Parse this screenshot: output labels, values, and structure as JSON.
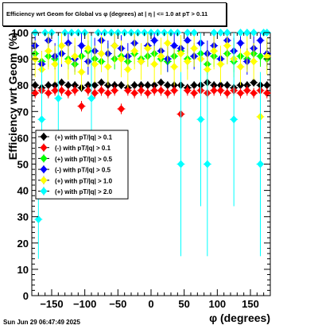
{
  "title": "Efficiency wrt Geom for Global vs φ (degrees) at |  η  | <= 1.0 at pT > 0.11",
  "footer": "Sun Jun 29 06:47:49 2025",
  "chart_data": {
    "type": "scatter",
    "title": "Efficiency wrt Geom for Global vs φ (degrees) at |  η  | <= 1.0 at pT > 0.11",
    "xlabel": "φ (degrees)",
    "ylabel": "Efficiency wrt Geom (%)",
    "xlim": [
      -180,
      180
    ],
    "ylim": [
      0,
      100
    ],
    "x_ticks": [
      -150,
      -100,
      -50,
      0,
      50,
      100,
      150
    ],
    "y_ticks": [
      0,
      10,
      20,
      30,
      40,
      50,
      60,
      70,
      80,
      90,
      100
    ],
    "grid": false,
    "legend_position": "middle-left",
    "series": [
      {
        "name": "(+) with pT/|q| > 0.1",
        "color": "#000000",
        "x": [
          -175,
          -165,
          -155,
          -145,
          -135,
          -125,
          -115,
          -105,
          -95,
          -85,
          -75,
          -65,
          -55,
          -45,
          -35,
          -25,
          -15,
          -5,
          5,
          15,
          25,
          35,
          45,
          55,
          65,
          75,
          85,
          95,
          105,
          115,
          125,
          135,
          145,
          155,
          165,
          175
        ],
        "y": [
          80,
          79,
          80,
          80,
          81,
          80,
          80,
          79,
          80,
          80,
          81,
          80,
          80,
          80,
          79,
          80,
          80,
          80,
          80,
          81,
          80,
          80,
          80,
          79,
          80,
          80,
          81,
          80,
          80,
          80,
          79,
          80,
          80,
          81,
          80,
          80
        ],
        "err": [
          1.5,
          1.5,
          1.5,
          1.5,
          1.5,
          1.5,
          1.5,
          1.5,
          1.5,
          1.5,
          1.5,
          1.5,
          1.5,
          1.5,
          1.5,
          1.5,
          1.5,
          1.5,
          1.5,
          1.5,
          1.5,
          1.5,
          1.5,
          1.5,
          1.5,
          1.5,
          1.5,
          1.5,
          1.5,
          1.5,
          1.5,
          1.5,
          1.5,
          1.5,
          1.5,
          1.5
        ]
      },
      {
        "name": "(-) with pT/|q| > 0.1",
        "color": "#ff0000",
        "x": [
          -175,
          -165,
          -155,
          -145,
          -135,
          -125,
          -115,
          -105,
          -95,
          -85,
          -75,
          -65,
          -55,
          -45,
          -35,
          -25,
          -15,
          -5,
          5,
          15,
          25,
          35,
          45,
          55,
          65,
          75,
          85,
          95,
          105,
          115,
          125,
          135,
          145,
          155,
          165,
          175
        ],
        "y": [
          77,
          78,
          77,
          78,
          78,
          77,
          78,
          72,
          78,
          77,
          78,
          77,
          78,
          71,
          78,
          77,
          78,
          77,
          78,
          78,
          77,
          78,
          69,
          78,
          77,
          78,
          77,
          78,
          78,
          77,
          78,
          77,
          78,
          77,
          78,
          77
        ],
        "err": [
          2,
          2,
          2,
          2,
          2,
          2,
          2,
          2,
          2,
          2,
          2,
          2,
          2,
          2,
          2,
          2,
          2,
          2,
          2,
          2,
          2,
          2,
          2,
          2,
          2,
          2,
          2,
          2,
          2,
          2,
          2,
          2,
          2,
          2,
          2,
          2
        ]
      },
      {
        "name": "(+) with pT/|q| > 0.5",
        "color": "#00ff00",
        "x": [
          -175,
          -165,
          -155,
          -145,
          -135,
          -125,
          -115,
          -105,
          -95,
          -85,
          -75,
          -65,
          -55,
          -45,
          -35,
          -25,
          -15,
          -5,
          5,
          15,
          25,
          35,
          45,
          55,
          65,
          75,
          85,
          95,
          105,
          115,
          125,
          135,
          145,
          155,
          165,
          175
        ],
        "y": [
          92,
          89,
          91,
          90,
          92,
          90,
          88,
          91,
          93,
          90,
          89,
          92,
          90,
          91,
          89,
          92,
          90,
          91,
          92,
          90,
          89,
          91,
          93,
          90,
          91,
          92,
          88,
          91,
          90,
          92,
          89,
          91,
          90,
          92,
          91,
          90
        ],
        "err": [
          4,
          4,
          4,
          4,
          4,
          4,
          4,
          4,
          4,
          4,
          4,
          4,
          4,
          4,
          4,
          4,
          4,
          4,
          4,
          4,
          4,
          4,
          4,
          4,
          4,
          4,
          4,
          4,
          4,
          4,
          4,
          4,
          4,
          4,
          4,
          4
        ]
      },
      {
        "name": "(-) with pT/|q| > 0.5",
        "color": "#0000ff",
        "x": [
          -175,
          -165,
          -155,
          -145,
          -135,
          -125,
          -115,
          -105,
          -95,
          -85,
          -75,
          -65,
          -55,
          -45,
          -35,
          -25,
          -15,
          -5,
          5,
          15,
          25,
          35,
          45,
          55,
          65,
          75,
          85,
          95,
          105,
          115,
          125,
          135,
          145,
          155,
          165,
          175
        ],
        "y": [
          95,
          88,
          97,
          91,
          92,
          96,
          90,
          95,
          89,
          93,
          97,
          92,
          95,
          94,
          91,
          96,
          89,
          95,
          97,
          93,
          90,
          95,
          94,
          97,
          91,
          96,
          92,
          95,
          90,
          97,
          93,
          96,
          89,
          94,
          97,
          92
        ],
        "err": [
          5,
          5,
          5,
          5,
          5,
          5,
          5,
          5,
          5,
          5,
          5,
          5,
          5,
          5,
          5,
          5,
          5,
          5,
          5,
          5,
          5,
          5,
          5,
          5,
          5,
          5,
          5,
          5,
          5,
          5,
          5,
          5,
          5,
          5,
          5,
          5
        ]
      },
      {
        "name": "(+) with pT/|q| > 1.0",
        "color": "#ffff00",
        "x": [
          -175,
          -165,
          -155,
          -145,
          -135,
          -125,
          -115,
          -105,
          -95,
          -85,
          -75,
          -65,
          -55,
          -45,
          -35,
          -25,
          -15,
          -5,
          5,
          15,
          25,
          35,
          45,
          55,
          65,
          75,
          85,
          95,
          105,
          115,
          125,
          135,
          145,
          155,
          165,
          175
        ],
        "y": [
          90,
          86,
          93,
          88,
          95,
          89,
          91,
          85,
          94,
          88,
          92,
          87,
          95,
          90,
          86,
          93,
          89,
          94,
          88,
          91,
          96,
          87,
          92,
          89,
          94,
          90,
          86,
          93,
          88,
          95,
          90,
          87,
          92,
          89,
          68,
          91
        ],
        "err": [
          7,
          7,
          7,
          7,
          7,
          7,
          7,
          7,
          7,
          7,
          7,
          7,
          7,
          7,
          7,
          7,
          7,
          7,
          7,
          7,
          7,
          7,
          7,
          7,
          7,
          7,
          7,
          7,
          7,
          7,
          7,
          7,
          7,
          7,
          7,
          7
        ]
      },
      {
        "name": "(+) with pT/|q| > 2.0",
        "color": "#00ffff",
        "x": [
          -175,
          -170,
          -165,
          -160,
          -150,
          -140,
          -130,
          -120,
          -110,
          -100,
          -90,
          -80,
          -70,
          -60,
          -50,
          -40,
          -30,
          -20,
          -10,
          0,
          10,
          20,
          30,
          40,
          45,
          55,
          65,
          75,
          85,
          95,
          105,
          115,
          125,
          135,
          145,
          155,
          165,
          170,
          175
        ],
        "y": [
          100,
          29,
          67,
          100,
          100,
          75,
          100,
          100,
          100,
          100,
          75,
          100,
          100,
          100,
          100,
          100,
          100,
          100,
          100,
          100,
          100,
          100,
          100,
          100,
          50,
          100,
          100,
          67,
          50,
          100,
          100,
          100,
          67,
          100,
          100,
          100,
          50,
          100,
          100
        ],
        "err": [
          0,
          15,
          20,
          0,
          0,
          25,
          0,
          0,
          0,
          0,
          25,
          0,
          0,
          0,
          0,
          0,
          0,
          0,
          0,
          0,
          0,
          0,
          0,
          0,
          35,
          0,
          0,
          33,
          35,
          0,
          0,
          0,
          33,
          0,
          0,
          0,
          35,
          0,
          0
        ]
      }
    ]
  }
}
